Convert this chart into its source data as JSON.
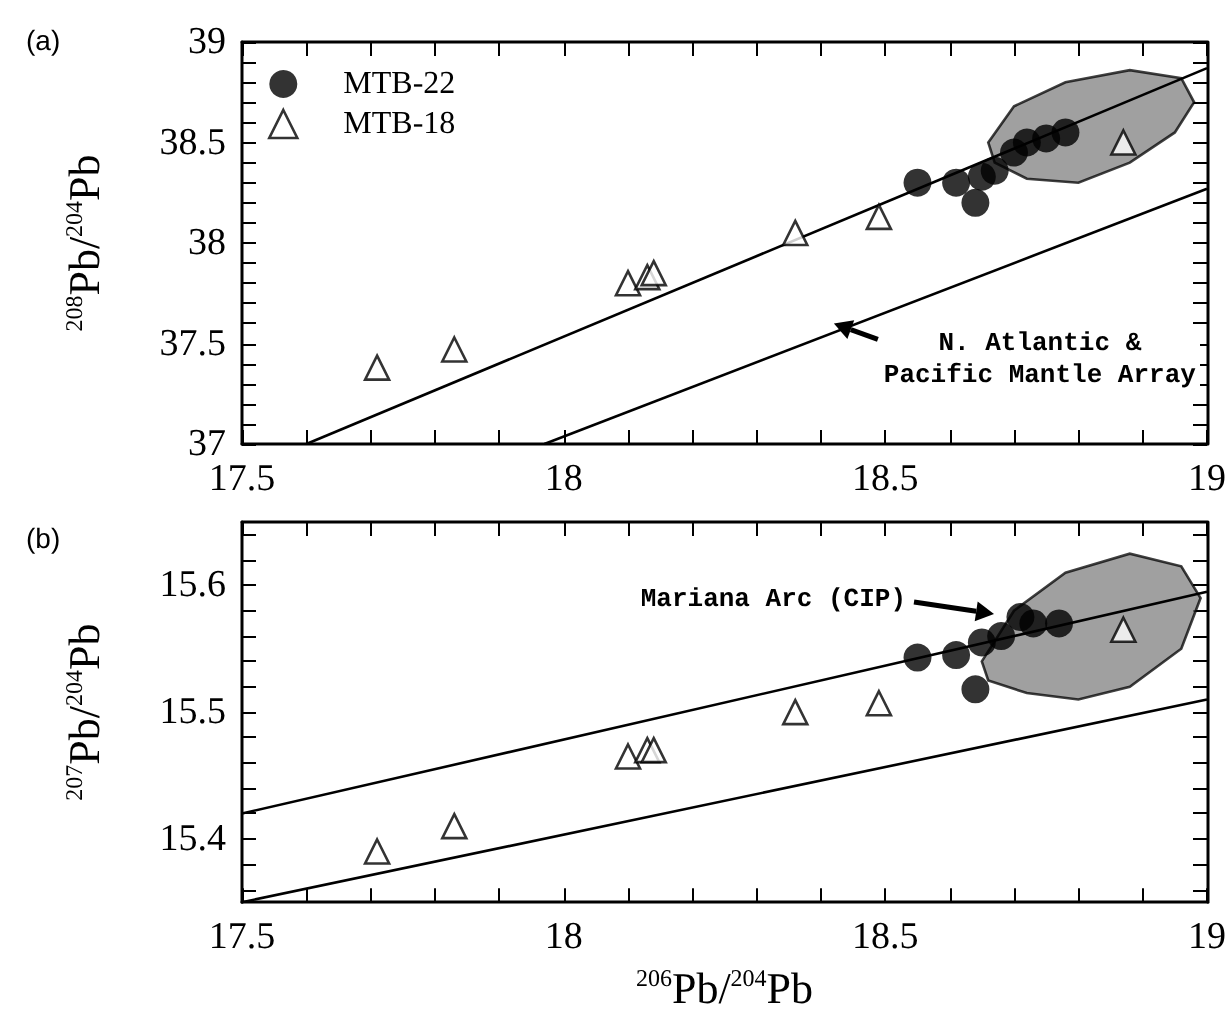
{
  "chart_data": [
    {
      "type": "scatter",
      "title": "(a)",
      "ylabel": "$^{208}$Pb/$^{204}$Pb",
      "xlim": [
        17.5,
        19
      ],
      "ylim": [
        37,
        39
      ],
      "xticks": [
        17.5,
        {
          "value": 17.6,
          "label": null
        },
        {
          "value": 17.7,
          "label": null
        },
        {
          "value": 17.8,
          "label": null
        },
        {
          "value": 17.9,
          "label": null
        },
        18,
        {
          "value": 18.1,
          "label": null
        },
        {
          "value": 18.2,
          "label": null
        },
        {
          "value": 18.3,
          "label": null
        },
        {
          "value": 18.4,
          "label": null
        },
        18.5,
        {
          "value": 18.6,
          "label": null
        },
        {
          "value": 18.7,
          "label": null
        },
        {
          "value": 18.8,
          "label": null
        },
        {
          "value": 18.9,
          "label": null
        },
        19
      ],
      "yticks": [
        37,
        {
          "value": 37.1,
          "label": null
        },
        {
          "value": 37.2,
          "label": null
        },
        {
          "value": 37.3,
          "label": null
        },
        {
          "value": 37.4,
          "label": null
        },
        37.5,
        {
          "value": 37.6,
          "label": null
        },
        {
          "value": 37.7,
          "label": null
        },
        {
          "value": 37.8,
          "label": null
        },
        {
          "value": 37.9,
          "label": null
        },
        38,
        {
          "value": 38.1,
          "label": null
        },
        {
          "value": 38.2,
          "label": null
        },
        {
          "value": 38.3,
          "label": null
        },
        {
          "value": 38.4,
          "label": null
        },
        38.5,
        {
          "value": 38.6,
          "label": null
        },
        {
          "value": 38.7,
          "label": null
        },
        {
          "value": 38.8,
          "label": null
        },
        {
          "value": 38.9,
          "label": null
        },
        39
      ],
      "legend": "top left",
      "grid": false,
      "annotations": [
        {
          "text": "N. Atlantic & Pacific Mantle Array",
          "x": 18.42,
          "y": 37.6
        }
      ],
      "series": [
        {
          "type": "area",
          "color": "#808080",
          "x": [
            18.66,
            18.7,
            18.78,
            18.88,
            18.96,
            18.98,
            18.95,
            18.88,
            18.8,
            18.72,
            18.67,
            18.66
          ],
          "values": [
            38.5,
            38.68,
            38.8,
            38.86,
            38.82,
            38.7,
            38.55,
            38.4,
            38.3,
            38.32,
            38.4,
            38.5
          ]
        },
        {
          "type": "line",
          "color": "#000000",
          "marker": "none",
          "x": [
            17.6,
            19
          ],
          "values": [
            37,
            38.87
          ]
        },
        {
          "type": "line",
          "color": "#000000",
          "marker": "none",
          "x": [
            17.97,
            19
          ],
          "values": [
            37,
            38.27
          ]
        },
        {
          "name": "MTB-22",
          "color": "#000000",
          "marker": "circle",
          "x": [
            18.55,
            18.61,
            18.64,
            18.65,
            18.67,
            18.7,
            18.72,
            18.75,
            18.78
          ],
          "values": [
            38.3,
            38.3,
            38.2,
            38.33,
            38.36,
            38.45,
            38.5,
            38.52,
            38.55
          ]
        },
        {
          "name": "MTB-18",
          "color": "#000000",
          "marker": "triangle",
          "x": [
            17.71,
            17.83,
            18.1,
            18.13,
            18.14,
            18.36,
            18.49,
            18.87
          ],
          "values": [
            37.38,
            37.47,
            37.8,
            37.83,
            37.85,
            38.05,
            38.13,
            38.5
          ]
        }
      ]
    },
    {
      "type": "scatter",
      "title": "(b)",
      "xlabel": "$^{206}$Pb/$^{204}$Pb",
      "ylabel": "$^{207}$Pb/$^{204}$Pb",
      "xlim": [
        17.5,
        19
      ],
      "ylim": [
        15.35,
        15.65
      ],
      "xticks": [
        17.5,
        {
          "value": 17.6,
          "label": null
        },
        {
          "value": 17.7,
          "label": null
        },
        {
          "value": 17.8,
          "label": null
        },
        {
          "value": 17.9,
          "label": null
        },
        18,
        {
          "value": 18.1,
          "label": null
        },
        {
          "value": 18.2,
          "label": null
        },
        {
          "value": 18.3,
          "label": null
        },
        {
          "value": 18.4,
          "label": null
        },
        18.5,
        {
          "value": 18.6,
          "label": null
        },
        {
          "value": 18.7,
          "label": null
        },
        {
          "value": 18.8,
          "label": null
        },
        {
          "value": 18.9,
          "label": null
        },
        19
      ],
      "yticks": [
        {
          "value": 15.36,
          "label": null
        },
        {
          "value": 15.38,
          "label": null
        },
        15.4,
        {
          "value": 15.42,
          "label": null
        },
        {
          "value": 15.44,
          "label": null
        },
        {
          "value": 15.46,
          "label": null
        },
        {
          "value": 15.48,
          "label": null
        },
        15.5,
        {
          "value": 15.52,
          "label": null
        },
        {
          "value": 15.54,
          "label": null
        },
        {
          "value": 15.56,
          "label": null
        },
        {
          "value": 15.58,
          "label": null
        },
        15.6,
        {
          "value": 15.62,
          "label": null
        },
        {
          "value": 15.64,
          "label": null
        }
      ],
      "grid": false,
      "annotations": [
        "Mariana Arc (CIP)"
      ],
      "series": [
        {
          "type": "area",
          "color": "#808080",
          "x": [
            18.65,
            18.7,
            18.78,
            18.88,
            18.96,
            18.99,
            18.96,
            18.88,
            18.8,
            18.72,
            18.66,
            18.65
          ],
          "values": [
            15.54,
            15.58,
            15.61,
            15.625,
            15.615,
            15.59,
            15.55,
            15.52,
            15.51,
            15.515,
            15.525,
            15.54
          ]
        },
        {
          "type": "line",
          "color": "#000000",
          "marker": "none",
          "x": [
            17.5,
            19
          ],
          "values": [
            15.42,
            15.595
          ]
        },
        {
          "type": "line",
          "color": "#000000",
          "marker": "none",
          "x": [
            17.5,
            19
          ],
          "values": [
            15.35,
            15.51
          ]
        },
        {
          "color": "#000000",
          "marker": "circle",
          "x": [
            18.55,
            18.61,
            18.64,
            18.65,
            18.68,
            18.71,
            18.73,
            18.77
          ],
          "values": [
            15.543,
            15.545,
            15.518,
            15.555,
            15.56,
            15.575,
            15.57,
            15.57
          ]
        },
        {
          "color": "#000000",
          "marker": "triangle",
          "x": [
            17.71,
            17.83,
            18.1,
            18.13,
            18.14,
            18.36,
            18.49,
            18.87
          ],
          "values": [
            15.39,
            15.41,
            15.465,
            15.47,
            15.47,
            15.5,
            15.507,
            15.565
          ]
        }
      ]
    }
  ]
}
